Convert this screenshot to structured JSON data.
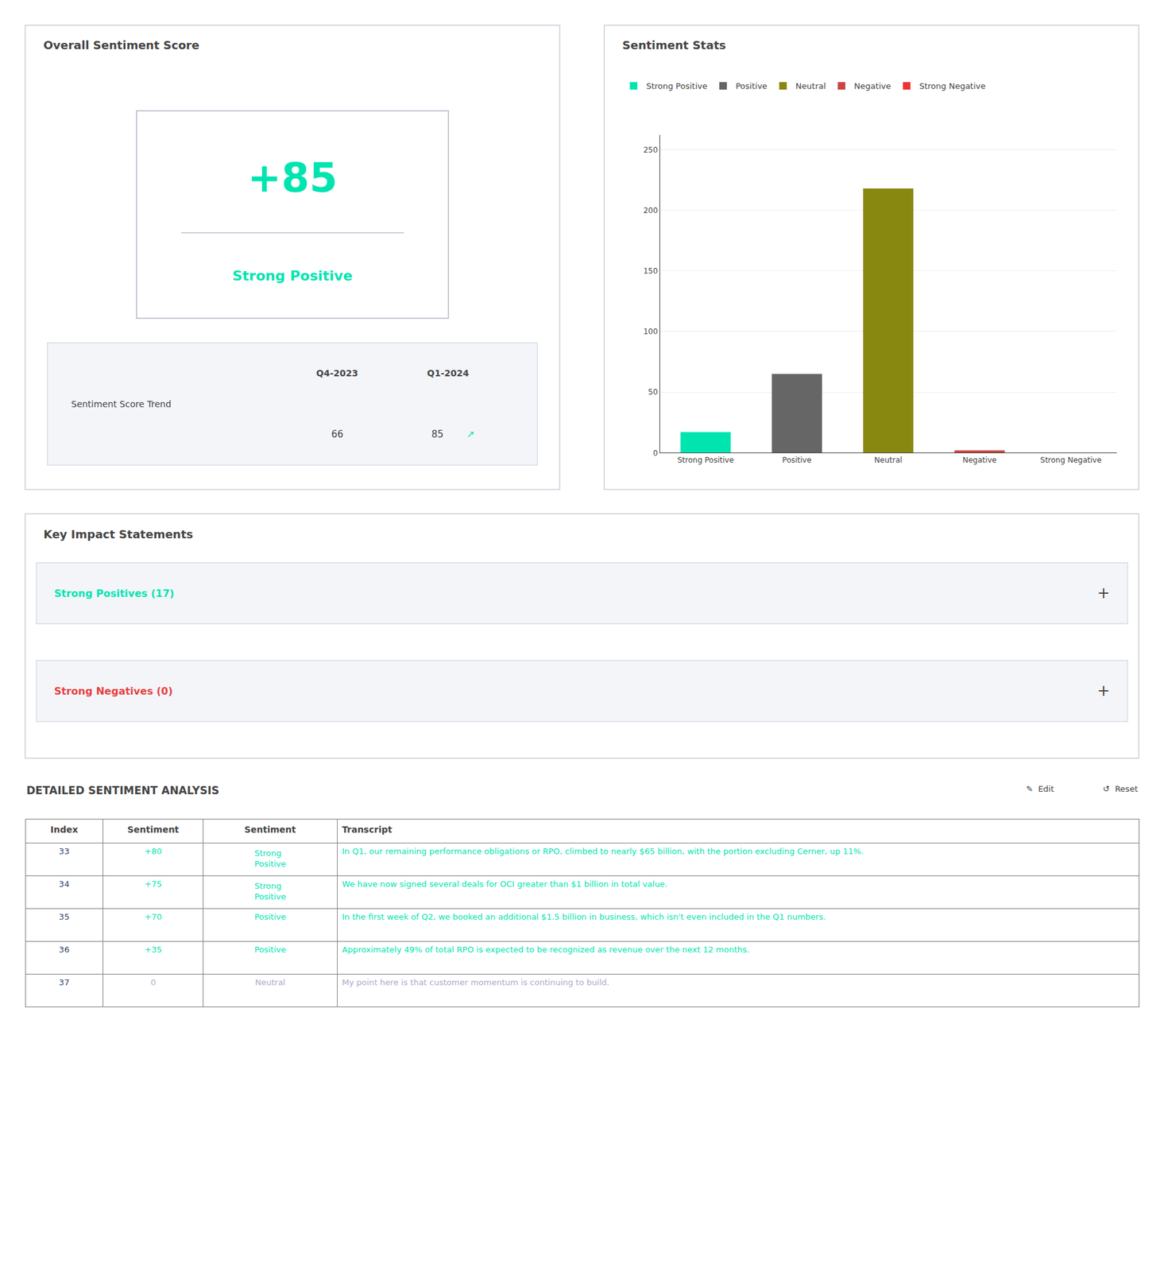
{
  "chart_data": [
    {
      "type": "text",
      "title": "Overall Sentiment Score",
      "annotations": [
        {
          "text": "+85",
          "color": "#00e5b0"
        },
        {
          "text": "Strong Positive",
          "color": "#00e5b0"
        },
        {
          "text": "Sentiment Score Trend"
        },
        {
          "text": "Q4-2023"
        },
        {
          "text": "Q1-2024"
        },
        {
          "text": "66"
        },
        {
          "text": "85"
        },
        {
          "text": "↗",
          "color": "#00e5b0"
        }
      ]
    },
    {
      "type": "bar",
      "title": "Sentiment Stats",
      "categories": [
        "Strong Positive",
        "Positive",
        "Neutral",
        "Negative",
        "Strong Negative"
      ],
      "values": [
        17,
        65,
        218,
        2,
        0
      ],
      "colors": [
        "#00e5b0",
        "#666666",
        "#888811",
        "#cc4444",
        "#ee3333"
      ],
      "ylim": [
        0,
        262
      ],
      "yticks": [
        0,
        50,
        100,
        150,
        200,
        250
      ],
      "grid": true,
      "legend": "top"
    },
    {
      "type": "text",
      "title": "Key Impact Statements",
      "annotations": [
        {
          "text": "Strong Positives (17)",
          "color": "#00e5b0"
        },
        {
          "text": "+"
        },
        {
          "text": "Strong Negatives (0)",
          "color": "#e84040"
        },
        {
          "text": "+"
        }
      ]
    },
    {
      "type": "table",
      "title": "DETAILED SENTIMENT ANALYSIS",
      "annotations": [
        {
          "text": "✎  Edit"
        },
        {
          "text": "↺  Reset"
        }
      ],
      "headers": [
        "Index",
        "Sentiment",
        "Sentiment",
        "Transcript"
      ],
      "rows": [
        {
          "index": 33,
          "score": "+80",
          "sentiment": "Strong\nPositive",
          "color": "#00e5b0",
          "transcript": "In Q1, our remaining performance obligations or RPO, climbed to nearly $65 billion, with the portion excluding Cerner, up 11%."
        },
        {
          "index": 34,
          "score": "+75",
          "sentiment": "Strong\nPositive",
          "color": "#00e5b0",
          "transcript": "We have now signed several deals for OCI greater than $1 billion in total value."
        },
        {
          "index": 35,
          "score": "+70",
          "sentiment": "Positive",
          "color": "#00e5b0",
          "transcript": "In the first week of Q2, we booked an additional $1.5 billion in business, which isn't even included in the Q1 numbers."
        },
        {
          "index": 36,
          "score": "+35",
          "sentiment": "Positive",
          "color": "#00e5b0",
          "transcript": "Approximately 49% of total RPO is expected to be recognized as revenue over the next 12 months."
        },
        {
          "index": 37,
          "score": "0",
          "sentiment": "Neutral",
          "color": "#aaaacc",
          "transcript": "My point here is that customer momentum is continuing to build."
        }
      ]
    }
  ]
}
